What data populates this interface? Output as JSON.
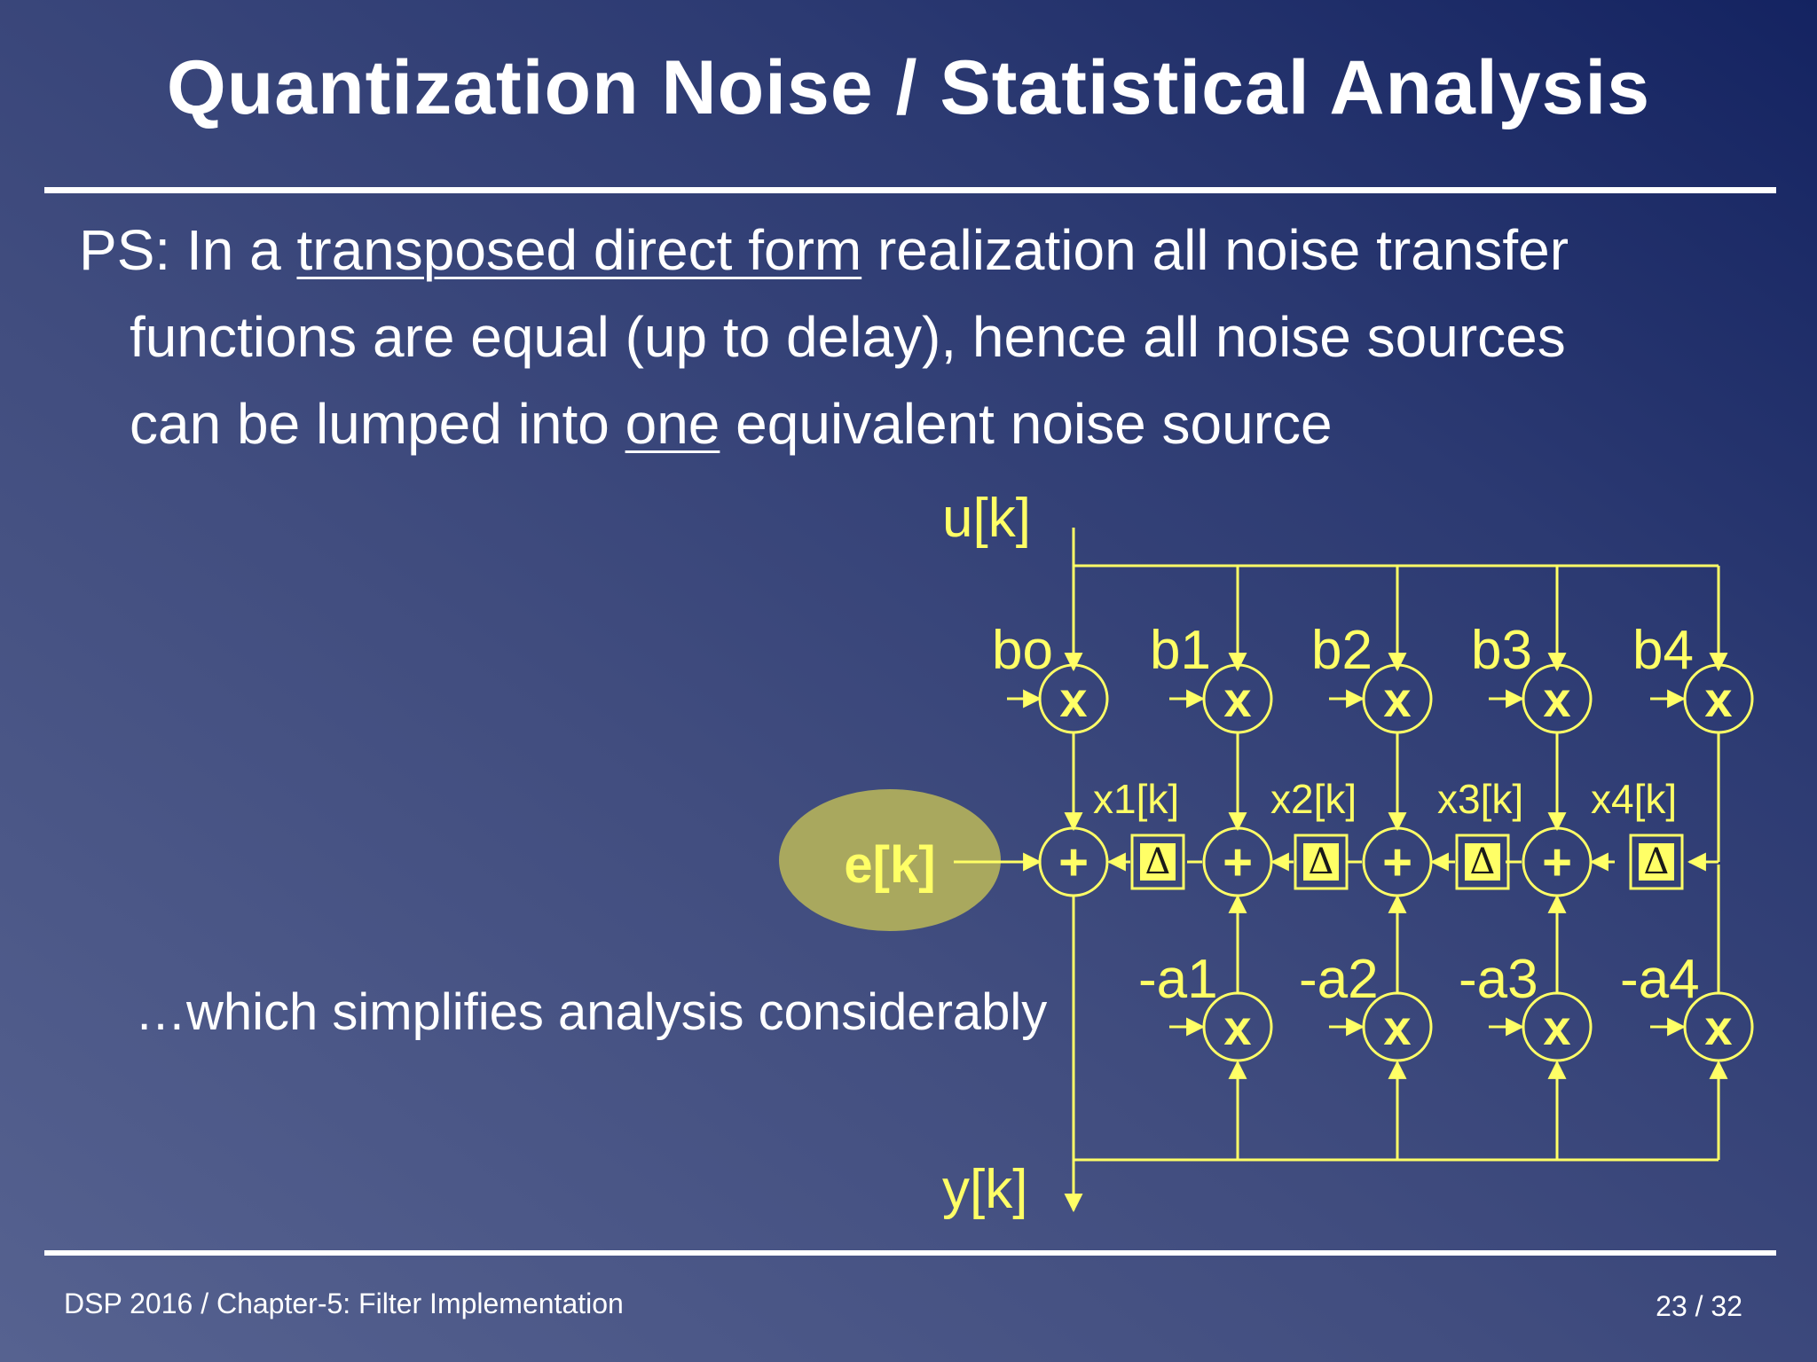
{
  "slide": {
    "title": "Quantization Noise / Statistical Analysis",
    "body": {
      "line1_pre": "PS: In a ",
      "line1_link": "transposed direct form",
      "line1_post": " realization all noise transfer",
      "line2": "functions are equal (up to delay), hence all noise sources",
      "line3_pre": "can be lumped into ",
      "line3_emph": "one",
      "line3_post": " equivalent noise source"
    },
    "remark": "…which simplifies analysis considerably",
    "footer": {
      "course": "DSP 2016  /  Chapter-5: Filter Implementation",
      "page": "23 / 32"
    }
  },
  "diagram": {
    "input_label": "u[k]",
    "output_label": "y[k]",
    "noise_label": "e[k]",
    "b_coeffs": [
      "bo",
      "b1",
      "b2",
      "b3",
      "b4"
    ],
    "a_coeffs": [
      "-a1",
      "-a2",
      "-a3",
      "-a4"
    ],
    "state_labels": [
      "x1[k]",
      "x2[k]",
      "x3[k]",
      "x4[k]"
    ],
    "multiply_symbol": "x",
    "add_symbol": "+",
    "delay_symbol": "Δ",
    "colors": {
      "diagram": "#ffff66",
      "noise_ellipse": "#a9a85e",
      "text": "#ffffff"
    }
  }
}
